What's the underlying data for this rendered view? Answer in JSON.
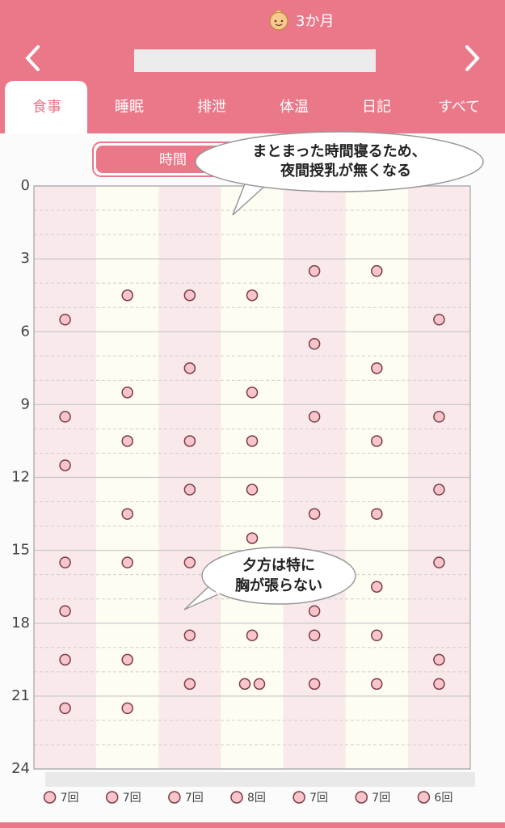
{
  "header": {
    "age": "3か月",
    "tabs": [
      "食事",
      "睡眠",
      "排泄",
      "体温",
      "日記",
      "すべて"
    ],
    "active_tab": 0
  },
  "toggle": {
    "label": "時間"
  },
  "notes": [
    {
      "lines": [
        "まとまった時間寝るため、",
        "夜間授乳が無くなる"
      ]
    },
    {
      "lines": [
        "夕方は特に",
        "胸が張らない"
      ]
    }
  ],
  "chart_data": {
    "type": "dot-columns",
    "ylim": [
      0,
      24
    ],
    "yticks": [
      0,
      3,
      6,
      9,
      12,
      15,
      18,
      21,
      24
    ],
    "y_reversed": true,
    "grid": true,
    "colors": {
      "dot": "#f7c5cb",
      "dot_edge": "#7b3b45",
      "column_a": "#f9e9eb",
      "column_b": "#fefdf1"
    },
    "columns": [
      {
        "values": [
          5.5,
          9.5,
          11.5,
          15.5,
          17.5,
          19.5,
          21.5
        ],
        "count_label": "7回"
      },
      {
        "values": [
          4.5,
          8.5,
          10.5,
          13.5,
          15.5,
          19.5,
          21.5
        ],
        "count_label": "7回"
      },
      {
        "values": [
          4.5,
          7.5,
          10.5,
          12.5,
          15.5,
          18.5,
          20.5
        ],
        "count_label": "7回"
      },
      {
        "values": [
          4.5,
          8.5,
          10.5,
          12.5,
          14.5,
          18.5,
          20.5,
          20.5
        ],
        "count_label": "8回"
      },
      {
        "values": [
          3.5,
          6.5,
          9.5,
          13.5,
          17.5,
          18.5,
          20.5
        ],
        "count_label": "7回"
      },
      {
        "values": [
          3.5,
          7.5,
          10.5,
          13.5,
          16.5,
          18.5,
          20.5
        ],
        "count_label": "7回"
      },
      {
        "values": [
          5.5,
          9.5,
          12.5,
          15.5,
          19.5,
          20.5
        ],
        "count_label": "6回"
      }
    ]
  }
}
